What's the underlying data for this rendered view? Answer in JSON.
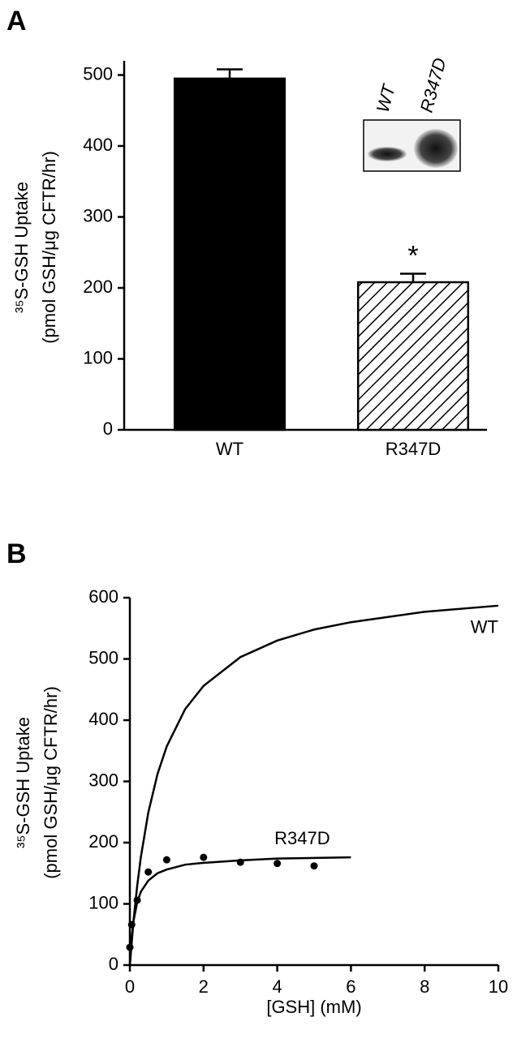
{
  "chart_data": [
    {
      "type": "bar",
      "panel": "A",
      "ylabel": [
        "³⁵S-GSH Uptake",
        "(pmol GSH/μg CFTR/hr)"
      ],
      "categories": [
        "WT",
        "R347D"
      ],
      "values": [
        495,
        208
      ],
      "errors": [
        13,
        12
      ],
      "color": "#000000",
      "fills": [
        "solid",
        "hatch"
      ],
      "annotations": [
        {
          "text": "*",
          "category": 1
        }
      ],
      "inset_labels": [
        "WT",
        "R347D"
      ],
      "ylim": [
        0,
        520
      ],
      "yticks": [
        0,
        100,
        200,
        300,
        400,
        500
      ]
    },
    {
      "type": "line",
      "panel": "B",
      "ylabel": [
        "³⁵S-GSH Uptake",
        "(pmol GSH/μg CFTR/hr)"
      ],
      "xlabel": "[GSH] (mM)",
      "series": [
        {
          "name": "WT",
          "color": "#000000",
          "x": [
            0,
            0.1,
            0.2,
            0.3,
            0.5,
            0.75,
            1,
            1.5,
            2,
            3,
            4,
            5,
            6,
            8,
            10
          ],
          "values": [
            0,
            73,
            130,
            177,
            249,
            312,
            357,
            418,
            456,
            503,
            530,
            548,
            560,
            577,
            587
          ]
        },
        {
          "name": "R347D",
          "color": "#000000",
          "x": [
            0,
            0.05,
            0.1,
            0.2,
            0.3,
            0.5,
            0.75,
            1,
            1.5,
            2,
            3,
            4,
            5,
            6
          ],
          "values": [
            0,
            45,
            72,
            103,
            120,
            138,
            150,
            156,
            164,
            167,
            171,
            174,
            175,
            176
          ]
        },
        {
          "marker": "circle",
          "color": "#000000",
          "x": [
            0,
            0.05,
            0.2,
            0.5,
            1,
            2,
            3,
            4,
            5
          ],
          "values": [
            29,
            66,
            106,
            152,
            172,
            176,
            168,
            166,
            162
          ]
        }
      ],
      "xlim": [
        0,
        10
      ],
      "xticks": [
        0,
        2,
        4,
        6,
        8,
        10
      ],
      "ylim": [
        0,
        600
      ],
      "yticks": [
        0,
        100,
        200,
        300,
        400,
        500,
        600
      ]
    }
  ]
}
